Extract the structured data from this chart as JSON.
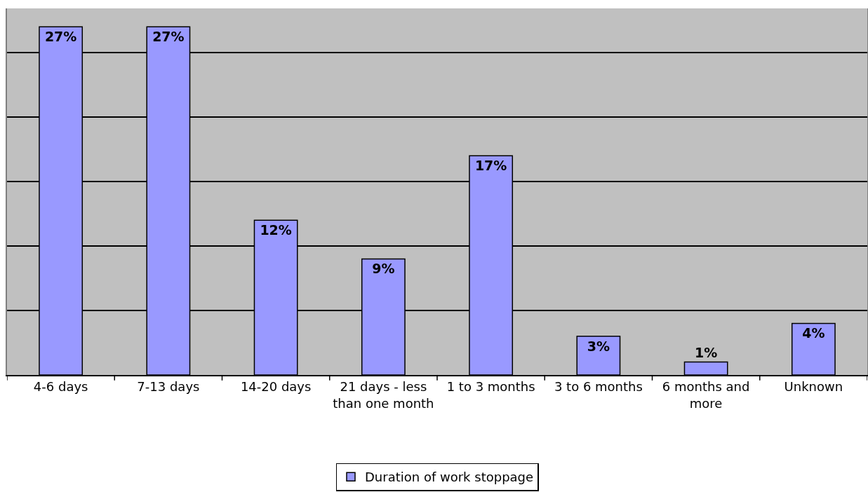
{
  "chart_data": {
    "type": "bar",
    "categories": [
      "4-6 days",
      "7-13 days",
      "14-20 days",
      "21 days - less than one month",
      "1 to 3 months",
      "3 to 6 months",
      "6 months and more",
      "Unknown"
    ],
    "series": [
      {
        "name": "Duration of work stoppage",
        "color": "#9999ff",
        "values": [
          27,
          27,
          12,
          9,
          17,
          3,
          1,
          4
        ],
        "value_labels": [
          "27%",
          "27%",
          "12%",
          "9%",
          "17%",
          "3%",
          "1%",
          "4%"
        ]
      }
    ],
    "tick_labels": "x",
    "grid": "y",
    "legend": "bottom"
  }
}
